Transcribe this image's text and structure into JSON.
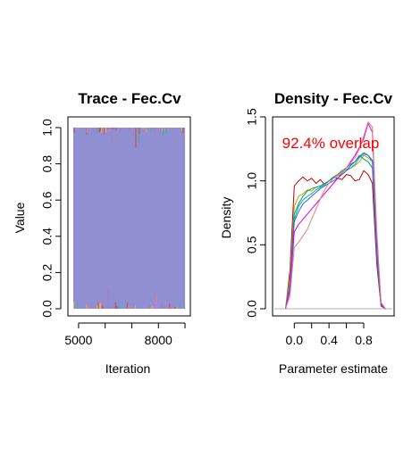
{
  "chart_data": [
    {
      "type": "line",
      "title": "Trace - Fec.Cv",
      "xlabel": "Iteration",
      "ylabel": "Value",
      "xlim": [
        4600,
        9200
      ],
      "ylim": [
        0,
        1
      ],
      "xticks": [
        {
          "value": 5000,
          "label": "5000"
        },
        {
          "value": 8000,
          "label": "8000"
        }
      ],
      "xminor": [
        6000,
        7000,
        9000
      ],
      "yticks": [
        {
          "value": 0.0,
          "label": "0.0"
        },
        {
          "value": 0.2,
          "label": "0.2"
        },
        {
          "value": 0.4,
          "label": "0.4"
        },
        {
          "value": 0.6,
          "label": "0.6"
        },
        {
          "value": 0.8,
          "label": "0.8"
        },
        {
          "value": 1.0,
          "label": "1.0"
        }
      ],
      "iteration_range": [
        4800,
        9000
      ],
      "band_color": "#8f8fd1",
      "series_colors": [
        "#e6b84a",
        "#2db8a8",
        "#a07bd8",
        "#cc4444",
        "#e87ab0"
      ]
    },
    {
      "type": "line",
      "title": "Density - Fec.Cv",
      "xlabel": "Parameter estimate",
      "ylabel": "Density",
      "annotation": "92.4% overlap",
      "xlim": [
        -0.25,
        1.15
      ],
      "ylim": [
        0,
        1.5
      ],
      "xticks": [
        {
          "value": 0.0,
          "label": "0.0"
        },
        {
          "value": 0.4,
          "label": "0.4"
        },
        {
          "value": 0.8,
          "label": "0.8"
        }
      ],
      "xminor": [
        0.2,
        0.6
      ],
      "yticks": [
        {
          "value": 0.0,
          "label": "0.0"
        },
        {
          "value": 0.5,
          "label": "0.5"
        },
        {
          "value": 1.0,
          "label": "1.0"
        },
        {
          "value": 1.5,
          "label": "1.5"
        }
      ],
      "baseline_color": "#b0b0b0",
      "x": [
        -0.1,
        -0.05,
        0.0,
        0.05,
        0.1,
        0.15,
        0.2,
        0.25,
        0.3,
        0.35,
        0.4,
        0.45,
        0.5,
        0.55,
        0.6,
        0.65,
        0.7,
        0.75,
        0.8,
        0.85,
        0.9,
        0.95,
        1.0,
        1.05
      ],
      "series": [
        {
          "color": "#c00000",
          "values": [
            0.0,
            0.3,
            0.96,
            1.0,
            1.03,
            1.0,
            1.02,
            0.98,
            1.01,
            0.97,
            1.0,
            1.03,
            1.02,
            1.01,
            1.05,
            1.04,
            1.0,
            1.01,
            1.08,
            1.05,
            0.98,
            0.35,
            0.02,
            0.0
          ]
        },
        {
          "color": "#c8a000",
          "values": [
            0.0,
            0.25,
            0.8,
            0.88,
            0.9,
            0.93,
            0.92,
            0.95,
            0.96,
            0.97,
            1.0,
            1.03,
            1.05,
            1.07,
            1.09,
            1.1,
            1.12,
            1.15,
            1.2,
            1.18,
            1.15,
            0.45,
            0.03,
            0.0
          ]
        },
        {
          "color": "#00a060",
          "values": [
            0.0,
            0.2,
            0.74,
            0.82,
            0.88,
            0.92,
            0.94,
            0.95,
            0.96,
            0.98,
            1.0,
            1.03,
            1.05,
            1.08,
            1.1,
            1.13,
            1.15,
            1.2,
            1.17,
            1.15,
            1.1,
            0.4,
            0.03,
            0.0
          ]
        },
        {
          "color": "#00b0c8",
          "values": [
            0.0,
            0.2,
            0.7,
            0.8,
            0.85,
            0.88,
            0.9,
            0.93,
            0.95,
            0.97,
            1.0,
            1.02,
            1.04,
            1.05,
            1.08,
            1.1,
            1.13,
            1.18,
            1.21,
            1.2,
            1.15,
            0.42,
            0.03,
            0.0
          ]
        },
        {
          "color": "#4060e0",
          "values": [
            0.0,
            0.18,
            0.68,
            0.76,
            0.82,
            0.85,
            0.88,
            0.91,
            0.94,
            0.96,
            0.98,
            1.0,
            1.02,
            1.05,
            1.08,
            1.12,
            1.15,
            1.19,
            1.22,
            1.2,
            1.16,
            0.42,
            0.03,
            0.0
          ]
        },
        {
          "color": "#e000e0",
          "values": [
            0.0,
            0.14,
            0.6,
            0.66,
            0.7,
            0.74,
            0.78,
            0.82,
            0.86,
            0.9,
            0.94,
            0.98,
            1.02,
            1.06,
            1.1,
            1.15,
            1.2,
            1.26,
            1.33,
            1.45,
            1.38,
            0.55,
            0.04,
            0.0
          ]
        },
        {
          "color": "#e08080",
          "values": [
            0.0,
            0.1,
            0.48,
            0.52,
            0.57,
            0.62,
            0.7,
            0.78,
            0.86,
            0.93,
            0.98,
            1.02,
            1.04,
            1.06,
            1.1,
            1.14,
            1.18,
            1.25,
            1.35,
            1.46,
            1.42,
            0.6,
            0.05,
            0.0
          ]
        }
      ]
    }
  ]
}
